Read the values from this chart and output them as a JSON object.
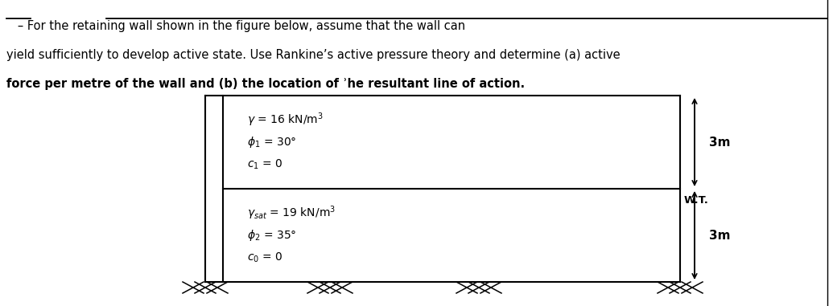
{
  "title_line1": "   – For the retaining wall shown in the figure below, assume that the wall can",
  "title_line2": "yield sufficiently to develop active state. Use Rankine’s active pressure theory and determine (a) active",
  "title_line3": "force per metre of the wall and (b) the location of ʾhe resultant line of action.",
  "layer1_gamma": "$\\gamma$ = 16 kN/m$^3$",
  "layer1_phi": "$\\phi_1$ = 30°",
  "layer1_c": "$c_1$ = 0",
  "layer2_gamma": "$\\gamma_{sat}$ = 19 kN/m$^3$",
  "layer2_phi": "$\\phi_2$ = 35°",
  "layer2_c": "$c_0$ = 0",
  "dim_top": "3m",
  "dim_bot": "3m",
  "wt_label": "W.T.",
  "bg_color": "#ffffff",
  "line_color": "#000000"
}
